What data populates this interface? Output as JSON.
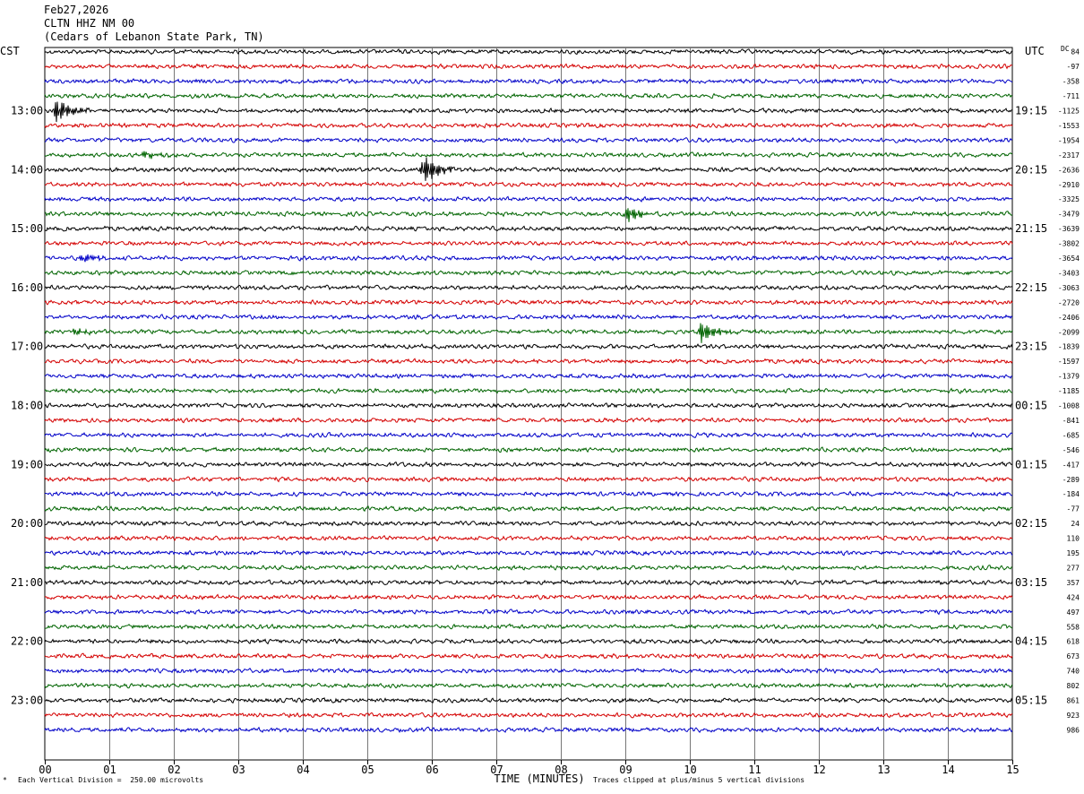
{
  "header": {
    "date": "Feb27,2026",
    "station": "CLTN HHZ NM 00",
    "location": "(Cedars of Lebanon State Park, TN)"
  },
  "left_timezone": "CST",
  "right_timezone": "UTC",
  "dc_label": "DC",
  "footer": {
    "scale_note": "Each Vertical Division =  250.00 microvolts",
    "clip_note": "Traces clipped at plus/minus 5 vertical divisions",
    "corner_mark": "*"
  },
  "chart_data": {
    "type": "line",
    "xlabel": "TIME (MINUTES)",
    "x_ticks": [
      "00",
      "01",
      "02",
      "03",
      "04",
      "05",
      "06",
      "07",
      "08",
      "09",
      "10",
      "11",
      "12",
      "13",
      "14",
      "15"
    ],
    "xlim": [
      0,
      15
    ],
    "trace_minutes": 15,
    "trace_colors": [
      "#000000",
      "#d40000",
      "#0000c8",
      "#006400"
    ],
    "left_hour_labels": [
      "13:00",
      "14:00",
      "15:00",
      "16:00",
      "17:00",
      "18:00",
      "19:00",
      "20:00",
      "21:00",
      "22:00",
      "23:00"
    ],
    "right_hour_labels": [
      "19:15",
      "20:15",
      "21:15",
      "22:15",
      "23:15",
      "00:15",
      "01:15",
      "02:15",
      "03:15",
      "04:15",
      "05:15"
    ],
    "trace_dc_offsets": [
      "84",
      "-97",
      "-358",
      "-711",
      "-1125",
      "-1553",
      "-1954",
      "-2317",
      "-2636",
      "-2910",
      "-3325",
      "-3479",
      "-3639",
      "-3802",
      "-3654",
      "-3403",
      "-3063",
      "-2720",
      "-2406",
      "-2099",
      "-1839",
      "-1597",
      "-1379",
      "-1185",
      "-1008",
      "-841",
      "-685",
      "-546",
      "-417",
      "-289",
      "-184",
      "-77",
      "24",
      "110",
      "195",
      "277",
      "357",
      "424",
      "497",
      "558",
      "618",
      "673",
      "740",
      "802",
      "861",
      "923",
      "986"
    ],
    "events": [
      {
        "trace": 4,
        "minute": 0.15,
        "amplitude": 2.6
      },
      {
        "trace": 7,
        "minute": 1.5,
        "amplitude": 0.8
      },
      {
        "trace": 8,
        "minute": 5.85,
        "amplitude": 3.2
      },
      {
        "trace": 11,
        "minute": 9.0,
        "amplitude": 1.6
      },
      {
        "trace": 14,
        "minute": 0.55,
        "amplitude": 1.0
      },
      {
        "trace": 19,
        "minute": 0.45,
        "amplitude": 0.7
      },
      {
        "trace": 19,
        "minute": 10.15,
        "amplitude": 2.2
      }
    ],
    "grid": "vertical minute lines"
  }
}
